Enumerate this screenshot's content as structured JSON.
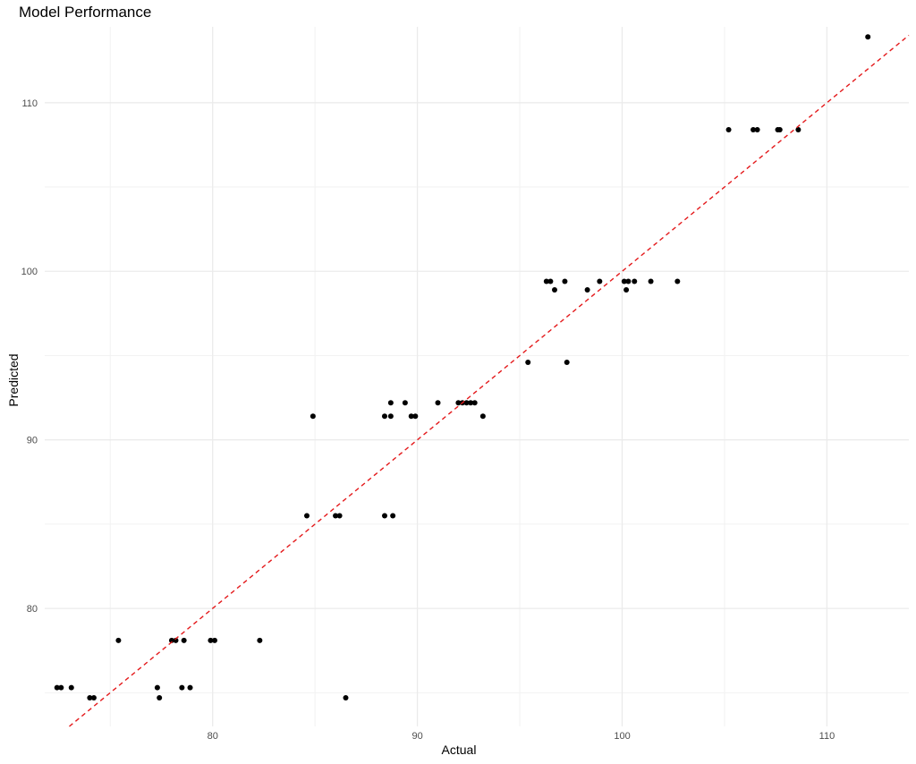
{
  "chart_data": {
    "type": "scatter",
    "title": "Model Performance",
    "xlabel": "Actual",
    "ylabel": "Predicted",
    "xlim": [
      71.8,
      114.0
    ],
    "ylim": [
      73.0,
      114.5
    ],
    "x_ticks": [
      80,
      90,
      100,
      110
    ],
    "y_ticks": [
      80,
      90,
      100,
      110
    ],
    "x_minor": [
      75,
      85,
      95,
      105
    ],
    "y_minor": [
      75,
      85,
      95,
      105
    ],
    "grid": true,
    "reference_line": {
      "type": "identity",
      "color": "#e41a1c",
      "style": "dashed"
    },
    "point_color": "#000000",
    "points": [
      {
        "x": 72.4,
        "y": 75.3
      },
      {
        "x": 72.6,
        "y": 75.3
      },
      {
        "x": 73.1,
        "y": 75.3
      },
      {
        "x": 74.0,
        "y": 74.7
      },
      {
        "x": 74.2,
        "y": 74.7
      },
      {
        "x": 75.4,
        "y": 78.1
      },
      {
        "x": 77.3,
        "y": 75.3
      },
      {
        "x": 77.4,
        "y": 74.7
      },
      {
        "x": 78.0,
        "y": 78.1
      },
      {
        "x": 78.2,
        "y": 78.1
      },
      {
        "x": 78.5,
        "y": 75.3
      },
      {
        "x": 78.6,
        "y": 78.1
      },
      {
        "x": 78.9,
        "y": 75.3
      },
      {
        "x": 79.9,
        "y": 78.1
      },
      {
        "x": 80.1,
        "y": 78.1
      },
      {
        "x": 82.3,
        "y": 78.1
      },
      {
        "x": 84.6,
        "y": 85.5
      },
      {
        "x": 84.9,
        "y": 91.4
      },
      {
        "x": 86.0,
        "y": 85.5
      },
      {
        "x": 86.2,
        "y": 85.5
      },
      {
        "x": 86.5,
        "y": 74.7
      },
      {
        "x": 88.4,
        "y": 91.4
      },
      {
        "x": 88.4,
        "y": 85.5
      },
      {
        "x": 88.7,
        "y": 92.2
      },
      {
        "x": 88.7,
        "y": 91.4
      },
      {
        "x": 88.8,
        "y": 85.5
      },
      {
        "x": 89.4,
        "y": 92.2
      },
      {
        "x": 89.7,
        "y": 91.4
      },
      {
        "x": 89.9,
        "y": 91.4
      },
      {
        "x": 91.0,
        "y": 92.2
      },
      {
        "x": 92.0,
        "y": 92.2
      },
      {
        "x": 92.2,
        "y": 92.2
      },
      {
        "x": 92.4,
        "y": 92.2
      },
      {
        "x": 92.6,
        "y": 92.2
      },
      {
        "x": 92.8,
        "y": 92.2
      },
      {
        "x": 93.2,
        "y": 91.4
      },
      {
        "x": 95.4,
        "y": 94.6
      },
      {
        "x": 96.3,
        "y": 99.4
      },
      {
        "x": 96.5,
        "y": 99.4
      },
      {
        "x": 96.7,
        "y": 98.9
      },
      {
        "x": 97.2,
        "y": 99.4
      },
      {
        "x": 97.3,
        "y": 94.6
      },
      {
        "x": 98.3,
        "y": 98.9
      },
      {
        "x": 98.9,
        "y": 99.4
      },
      {
        "x": 100.1,
        "y": 99.4
      },
      {
        "x": 100.2,
        "y": 98.9
      },
      {
        "x": 100.3,
        "y": 99.4
      },
      {
        "x": 100.6,
        "y": 99.4
      },
      {
        "x": 101.4,
        "y": 99.4
      },
      {
        "x": 102.7,
        "y": 99.4
      },
      {
        "x": 105.2,
        "y": 108.4
      },
      {
        "x": 106.4,
        "y": 108.4
      },
      {
        "x": 106.6,
        "y": 108.4
      },
      {
        "x": 107.6,
        "y": 108.4
      },
      {
        "x": 107.7,
        "y": 108.4
      },
      {
        "x": 108.6,
        "y": 108.4
      },
      {
        "x": 112.0,
        "y": 113.9
      }
    ]
  }
}
